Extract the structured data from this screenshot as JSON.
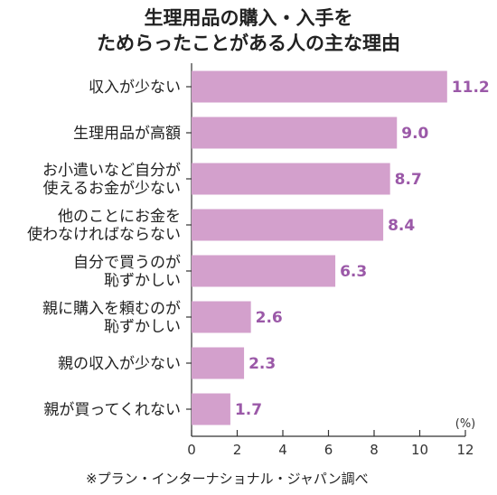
{
  "chart_data": {
    "type": "bar",
    "orientation": "horizontal",
    "title": [
      "生理用品の購入・入手を",
      "ためらったことがある人の主な理由"
    ],
    "categories": [
      [
        "収入が少ない"
      ],
      [
        "生理用品が高額"
      ],
      [
        "お小遣いなど自分が",
        "使えるお金が少ない"
      ],
      [
        "他のことにお金を",
        "使わなければならない"
      ],
      [
        "自分で買うのが",
        "恥ずかしい"
      ],
      [
        "親に購入を頼むのが",
        "恥ずかしい"
      ],
      [
        "親の収入が少ない"
      ],
      [
        "親が買ってくれない"
      ]
    ],
    "values": [
      11.2,
      9.0,
      8.7,
      8.4,
      6.3,
      2.6,
      2.3,
      1.7
    ],
    "value_labels": [
      "11.2",
      "9.0",
      "8.7",
      "8.4",
      "6.3",
      "2.6",
      "2.3",
      "1.7"
    ],
    "xlim": [
      0,
      12
    ],
    "xticks": [
      0,
      2,
      4,
      6,
      8,
      10,
      12
    ],
    "unit": "(%)",
    "grid": false,
    "colors": {
      "bar": "#d3a0cc",
      "value_text": "#9b59a8",
      "axis": "#333333"
    }
  },
  "footnote": "※プラン・インターナショナル・ジャパン調べ"
}
